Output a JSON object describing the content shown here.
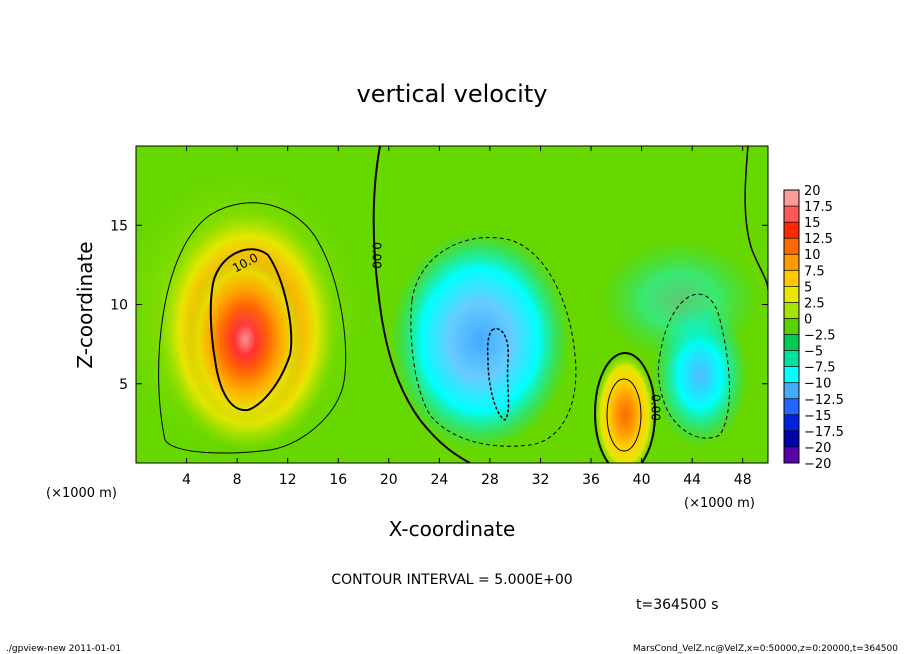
{
  "chart_data": {
    "type": "heatmap",
    "title": "vertical velocity",
    "xlabel": "X-coordinate",
    "ylabel": "Z-coordinate",
    "x_unit_left": "(×1000 m)",
    "x_unit_right": "(×1000 m)",
    "xlim": [
      0,
      50
    ],
    "ylim": [
      0,
      20
    ],
    "x_ticks": [
      "4",
      "8",
      "12",
      "16",
      "20",
      "24",
      "28",
      "32",
      "36",
      "40",
      "44",
      "48"
    ],
    "x_tick_values": [
      4,
      8,
      12,
      16,
      20,
      24,
      28,
      32,
      36,
      40,
      44,
      48
    ],
    "y_ticks": [
      "5",
      "10",
      "15"
    ],
    "y_tick_values": [
      5,
      10,
      15
    ],
    "contour_labels": [
      {
        "text": "10.0",
        "x": 8.8,
        "y": 12.4
      },
      {
        "text": "0.00",
        "x": 18.7,
        "y": 13.1
      },
      {
        "text": "0.00",
        "x": 40.8,
        "y": 3.5
      }
    ],
    "features": [
      {
        "kind": "updraft",
        "x": 9.3,
        "z": 8.0,
        "peak": 20
      },
      {
        "kind": "downdraft",
        "x": 27,
        "z": 7.5,
        "peak": -10
      },
      {
        "kind": "updraft",
        "x": 38.5,
        "z": 3.0,
        "peak": 12.5
      },
      {
        "kind": "downdraft",
        "x": 43.5,
        "z": 5.0,
        "peak": -7.5
      }
    ],
    "colorbar": {
      "levels": [
        "20",
        "17.5",
        "15",
        "12.5",
        "10",
        "7.5",
        "5",
        "2.5",
        "0",
        "−2.5",
        "−5",
        "−7.5",
        "−10",
        "−12.5",
        "−15",
        "−17.5",
        "−20"
      ],
      "colors": [
        "#ff9a9a",
        "#ff5a5a",
        "#ff2a00",
        "#ff6a00",
        "#ff9a00",
        "#ffc800",
        "#e8e800",
        "#a6e400",
        "#5ad000",
        "#00cc55",
        "#00e0a0",
        "#00ffff",
        "#44aaff",
        "#2266ff",
        "#0022dd",
        "#0000aa",
        "#5a00aa"
      ]
    },
    "contour_interval_text": "CONTOUR INTERVAL = 5.000E+00",
    "time_text": "t=364500 s"
  },
  "footer": {
    "left": "./gpview-new  2011-01-01",
    "right": "MarsCond_VelZ.nc@VelZ,x=0:50000,z=0:20000,t=364500"
  }
}
